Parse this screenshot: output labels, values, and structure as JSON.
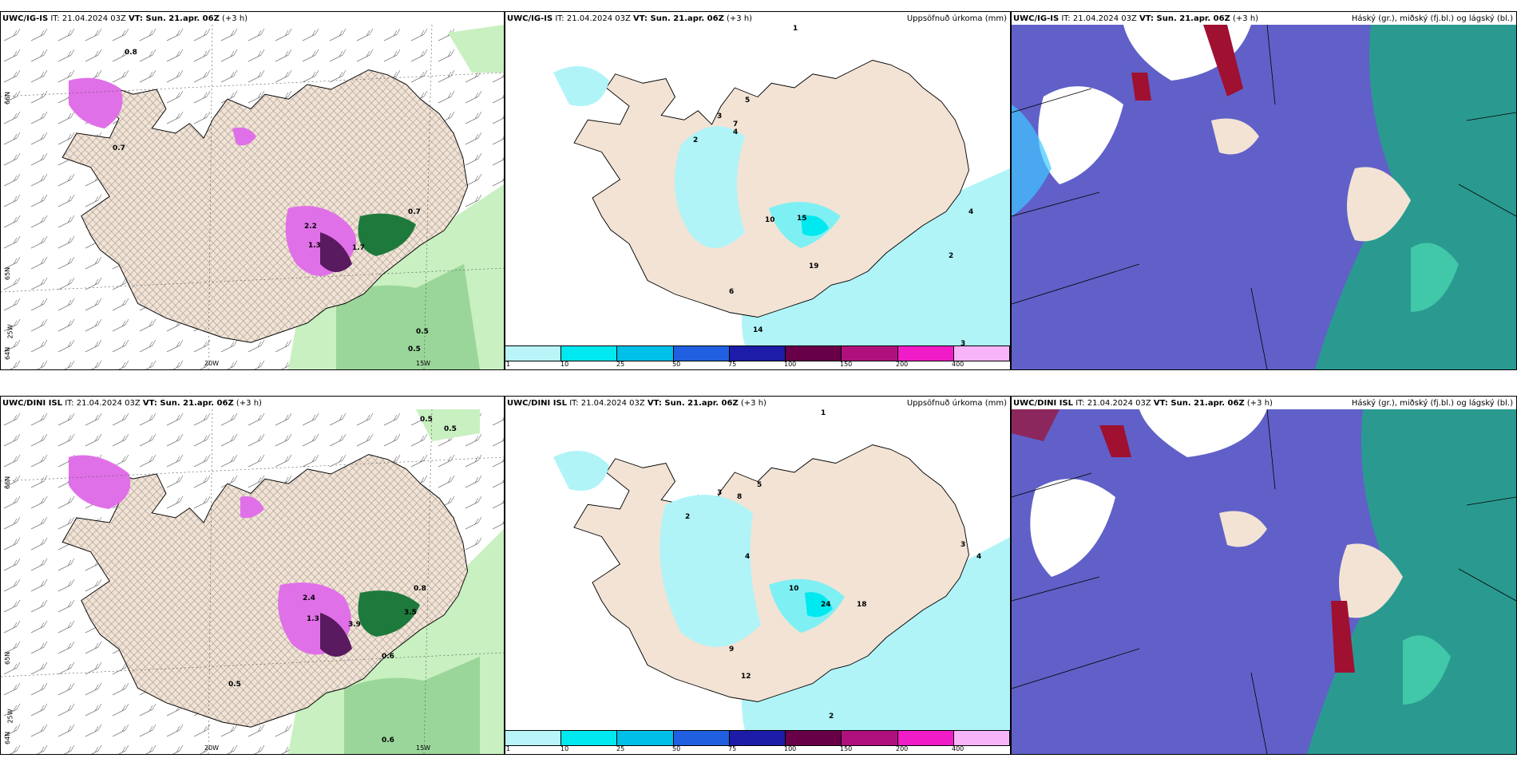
{
  "colors": {
    "land": "#f2e3d5",
    "sea": "#ffffff",
    "green_light": "#c8f0c0",
    "green_mid": "#7cc87c",
    "green_dark": "#1e7a3c",
    "magenta": "#e070e8",
    "purple_dark": "#5a1a60",
    "precip_cyan": "#b0f4f8",
    "cloud_low": "#2030c0",
    "cloud_mid": "#6060c8",
    "cloud_teal": "#2a9a90",
    "cloud_red": "#a01030",
    "cloud_cyan": "#40c8ff"
  },
  "rows": [
    {
      "panels": [
        {
          "title": "UWC/IG-IS",
          "it": " IT: 21.04.2024 03Z ",
          "vt": "VT: Sun. 21.apr. 06Z",
          "lead": " (+3 h)",
          "right": "",
          "labels": [
            "0.8",
            "0.7",
            "2.2",
            "1.3",
            "1.7",
            "0.7",
            "0.5",
            "0.5"
          ],
          "lat_labels": [
            "65N",
            "64N",
            "66N"
          ],
          "lon_labels": [
            "20W",
            "15W",
            "25W"
          ]
        },
        {
          "title": "UWC/IG-IS",
          "it": " IT: 21.04.2024 03Z ",
          "vt": "VT: Sun. 21.apr. 06Z",
          "lead": " (+3 h)",
          "right": "Uppsöfnuð úrkoma (mm)",
          "labels": [
            "1",
            "2",
            "3",
            "4",
            "5",
            "6",
            "7",
            "10",
            "15",
            "14",
            "19",
            "3",
            "2",
            "4"
          ],
          "colorbar": [
            "1",
            "10",
            "25",
            "50",
            "75",
            "100",
            "150",
            "200",
            "400"
          ]
        },
        {
          "title": "UWC/IG-IS",
          "it": " IT: 21.04.2024 03Z ",
          "vt": "VT: Sun. 21.apr. 06Z",
          "lead": " (+3 h)",
          "right": "Háský (gr.), miðský (fj.bl.) og lágský (bl.)"
        }
      ]
    },
    {
      "panels": [
        {
          "title": "UWC/DINI ISL",
          "it": " IT: 21.04.2024 03Z ",
          "vt": "VT: Sun. 21.apr. 06Z",
          "lead": " (+3 h)",
          "right": "",
          "labels": [
            "0.5",
            "0.5",
            "2.4",
            "1.3",
            "3.9",
            "3.5",
            "0.6",
            "0.8",
            "0.6",
            "0.5"
          ],
          "lat_labels": [
            "65N",
            "64N",
            "66N"
          ],
          "lon_labels": [
            "20W",
            "15W",
            "25W"
          ]
        },
        {
          "title": "UWC/DINI ISL",
          "it": " IT: 21.04.2024 03Z ",
          "vt": "VT: Sun. 21.apr. 06Z",
          "lead": " (+3 h)",
          "right": "Uppsöfnuð úrkoma (mm)",
          "labels": [
            "1",
            "2",
            "3",
            "4",
            "5",
            "8",
            "10",
            "18",
            "24",
            "9",
            "12",
            "2",
            "3",
            "4"
          ],
          "colorbar": [
            "1",
            "10",
            "25",
            "50",
            "75",
            "100",
            "150",
            "200",
            "400"
          ]
        },
        {
          "title": "UWC/DINI ISL",
          "it": " IT: 21.04.2024 03Z ",
          "vt": "VT: Sun. 21.apr. 06Z",
          "lead": " (+3 h)",
          "right": "Háský (gr.), miðský (fj.bl.) og lágský (bl.)"
        }
      ]
    }
  ],
  "colorbar_colors": [
    "#b8f4f8",
    "#00e8f0",
    "#00c0e8",
    "#2060e0",
    "#1c1ca8",
    "#680048",
    "#b0107c",
    "#f01cc8",
    "#f8b4f8"
  ]
}
